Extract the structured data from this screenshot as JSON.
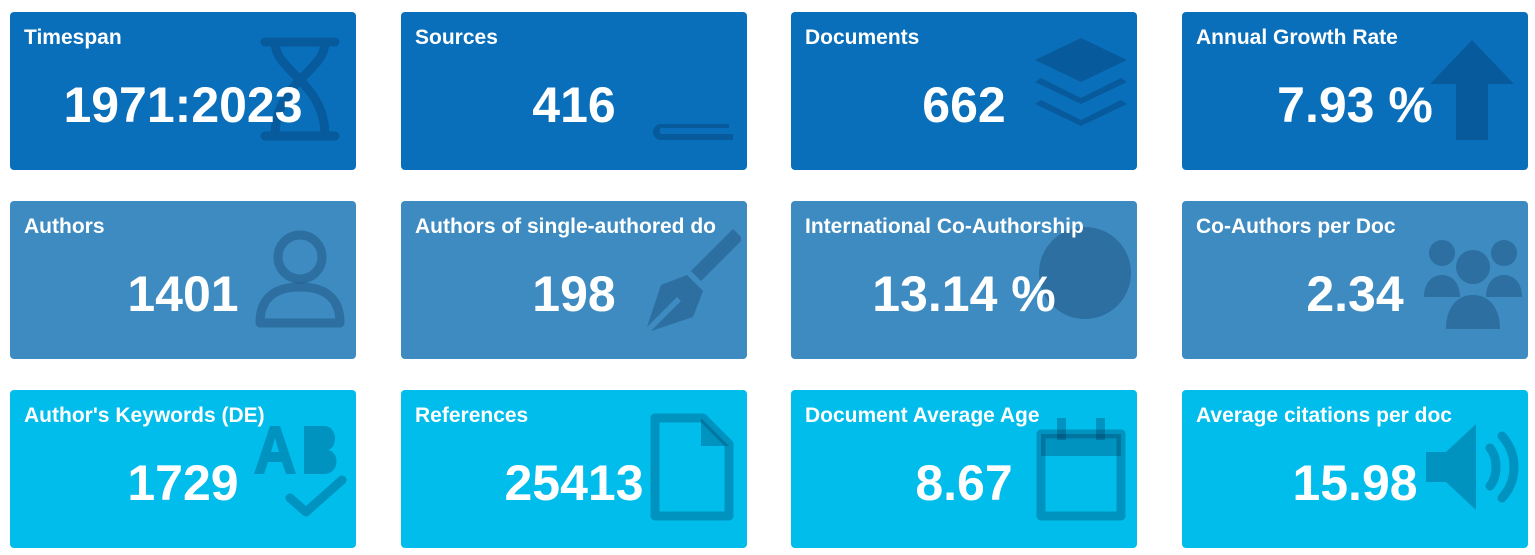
{
  "cards": [
    {
      "label": "Timespan",
      "value": "1971:2023"
    },
    {
      "label": "Sources",
      "value": "416"
    },
    {
      "label": "Documents",
      "value": "662"
    },
    {
      "label": "Annual Growth Rate",
      "value": "7.93 %"
    },
    {
      "label": "Authors",
      "value": "1401"
    },
    {
      "label": "Authors of single-authored do",
      "value": "198"
    },
    {
      "label": "International Co-Authorship",
      "value": "13.14 %"
    },
    {
      "label": "Co-Authors per Doc",
      "value": "2.34"
    },
    {
      "label": "Author's Keywords (DE)",
      "value": "1729"
    },
    {
      "label": "References",
      "value": "25413"
    },
    {
      "label": "Document Average Age",
      "value": "8.67"
    },
    {
      "label": "Average citations per doc",
      "value": "15.98"
    }
  ]
}
